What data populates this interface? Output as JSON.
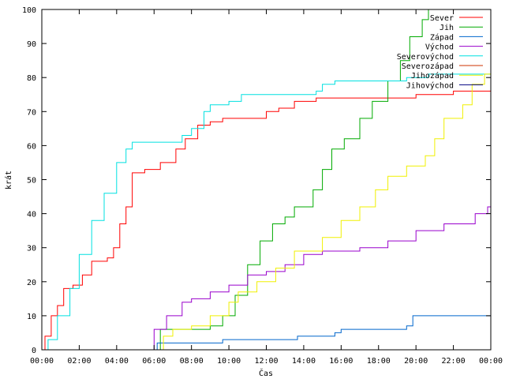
{
  "chart_data": {
    "type": "line",
    "title": "",
    "xlabel": "Čas",
    "ylabel": "krát",
    "ylim": [
      0,
      100
    ],
    "xlim": [
      "00:00",
      "24:00"
    ],
    "y_ticks": [
      0,
      10,
      20,
      30,
      40,
      50,
      60,
      70,
      80,
      90,
      100
    ],
    "x_ticks": [
      "00:00",
      "02:00",
      "04:00",
      "06:00",
      "08:00",
      "10:00",
      "12:00",
      "14:00",
      "16:00",
      "18:00",
      "20:00",
      "22:00",
      "00:00"
    ],
    "grid": false,
    "legend_position": "top-right",
    "series": [
      {
        "name": "Sever",
        "color": "#ff0000",
        "points": [
          [
            "00:00",
            0
          ],
          [
            "00:10",
            4
          ],
          [
            "00:30",
            10
          ],
          [
            "00:50",
            13
          ],
          [
            "01:10",
            18
          ],
          [
            "01:40",
            19
          ],
          [
            "02:10",
            22
          ],
          [
            "02:40",
            26
          ],
          [
            "03:30",
            27
          ],
          [
            "03:50",
            30
          ],
          [
            "04:10",
            37
          ],
          [
            "04:30",
            42
          ],
          [
            "04:50",
            52
          ],
          [
            "05:30",
            53
          ],
          [
            "06:20",
            55
          ],
          [
            "07:10",
            59
          ],
          [
            "07:40",
            62
          ],
          [
            "08:20",
            66
          ],
          [
            "09:00",
            67
          ],
          [
            "09:40",
            68
          ],
          [
            "12:00",
            70
          ],
          [
            "12:40",
            71
          ],
          [
            "13:30",
            73
          ],
          [
            "14:40",
            74
          ],
          [
            "16:00",
            74
          ],
          [
            "20:00",
            75
          ],
          [
            "22:00",
            76
          ],
          [
            "24:00",
            76
          ]
        ]
      },
      {
        "name": "Jih",
        "color": "#00aa00",
        "points": [
          [
            "06:00",
            0
          ],
          [
            "06:20",
            6
          ],
          [
            "07:00",
            6
          ],
          [
            "09:00",
            7
          ],
          [
            "09:40",
            10
          ],
          [
            "10:20",
            16
          ],
          [
            "11:00",
            25
          ],
          [
            "11:40",
            32
          ],
          [
            "12:20",
            37
          ],
          [
            "13:00",
            39
          ],
          [
            "13:30",
            42
          ],
          [
            "14:30",
            47
          ],
          [
            "15:00",
            53
          ],
          [
            "15:30",
            59
          ],
          [
            "16:10",
            62
          ],
          [
            "17:00",
            68
          ],
          [
            "17:40",
            73
          ],
          [
            "18:30",
            79
          ],
          [
            "19:10",
            85
          ],
          [
            "19:40",
            92
          ],
          [
            "20:20",
            97
          ],
          [
            "20:40",
            100
          ],
          [
            "24:00",
            100
          ]
        ]
      },
      {
        "name": "Západ",
        "color": "#0066cc",
        "points": [
          [
            "06:00",
            0
          ],
          [
            "06:10",
            2
          ],
          [
            "09:00",
            2
          ],
          [
            "09:40",
            3
          ],
          [
            "12:00",
            3
          ],
          [
            "12:40",
            3
          ],
          [
            "13:40",
            4
          ],
          [
            "15:40",
            5
          ],
          [
            "16:00",
            6
          ],
          [
            "19:30",
            7
          ],
          [
            "19:50",
            10
          ],
          [
            "24:00",
            10
          ]
        ]
      },
      {
        "name": "Východ",
        "color": "#9900cc",
        "points": [
          [
            "05:50",
            0
          ],
          [
            "06:00",
            6
          ],
          [
            "06:40",
            10
          ],
          [
            "07:30",
            14
          ],
          [
            "08:00",
            15
          ],
          [
            "09:00",
            17
          ],
          [
            "10:00",
            19
          ],
          [
            "11:00",
            22
          ],
          [
            "12:00",
            23
          ],
          [
            "13:00",
            25
          ],
          [
            "14:00",
            28
          ],
          [
            "15:00",
            29
          ],
          [
            "17:00",
            30
          ],
          [
            "18:30",
            32
          ],
          [
            "20:00",
            35
          ],
          [
            "21:30",
            37
          ],
          [
            "23:10",
            40
          ],
          [
            "23:50",
            42
          ],
          [
            "24:00",
            42
          ]
        ]
      },
      {
        "name": "Severovýchod",
        "color": "#00e0e0",
        "points": [
          [
            "00:00",
            0
          ],
          [
            "00:20",
            3
          ],
          [
            "00:50",
            10
          ],
          [
            "01:30",
            18
          ],
          [
            "02:00",
            28
          ],
          [
            "02:40",
            38
          ],
          [
            "03:20",
            46
          ],
          [
            "04:00",
            55
          ],
          [
            "04:30",
            59
          ],
          [
            "04:50",
            61
          ],
          [
            "06:30",
            61
          ],
          [
            "07:30",
            63
          ],
          [
            "08:00",
            65
          ],
          [
            "08:40",
            70
          ],
          [
            "09:00",
            72
          ],
          [
            "10:00",
            73
          ],
          [
            "10:40",
            75
          ],
          [
            "14:40",
            76
          ],
          [
            "15:00",
            78
          ],
          [
            "15:40",
            79
          ],
          [
            "18:00",
            79
          ],
          [
            "19:30",
            80
          ],
          [
            "20:40",
            81
          ],
          [
            "24:00",
            82
          ]
        ]
      },
      {
        "name": "Severozápad",
        "color": "#cc3300",
        "points": []
      },
      {
        "name": "Jihozápad",
        "color": "#f0f000",
        "points": [
          [
            "06:20",
            0
          ],
          [
            "06:30",
            4
          ],
          [
            "07:00",
            6
          ],
          [
            "08:00",
            7
          ],
          [
            "09:00",
            10
          ],
          [
            "10:00",
            14
          ],
          [
            "10:30",
            17
          ],
          [
            "11:30",
            20
          ],
          [
            "12:30",
            24
          ],
          [
            "13:30",
            29
          ],
          [
            "15:00",
            33
          ],
          [
            "16:00",
            38
          ],
          [
            "17:00",
            42
          ],
          [
            "17:50",
            47
          ],
          [
            "18:30",
            51
          ],
          [
            "19:30",
            54
          ],
          [
            "20:30",
            57
          ],
          [
            "21:00",
            62
          ],
          [
            "21:30",
            68
          ],
          [
            "22:30",
            72
          ],
          [
            "23:00",
            78
          ],
          [
            "23:40",
            81
          ],
          [
            "24:00",
            81
          ]
        ]
      },
      {
        "name": "Jihovýchod",
        "color": "#000080",
        "points": []
      }
    ]
  }
}
